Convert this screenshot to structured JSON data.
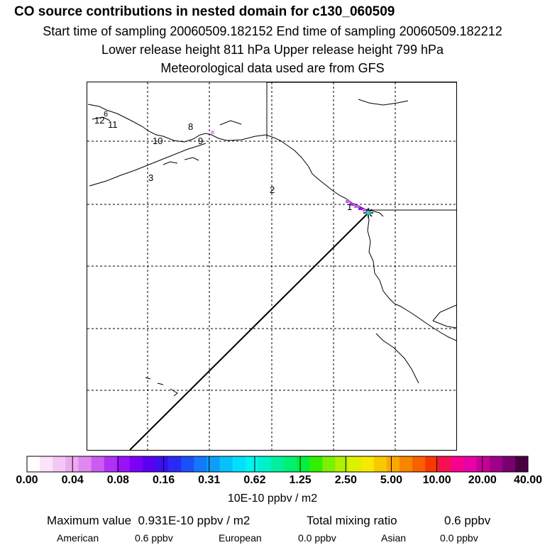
{
  "header": {
    "title": "CO  source contributions in nested domain for c130_060509",
    "line1": "Start time of sampling 20060509.182152     End time of sampling 20060509.182212",
    "line2": "Lower release height  811 hPa        Upper release height  799 hPa",
    "line3": "Meteorological data used are from GFS"
  },
  "chart_data": {
    "type": "heatmap",
    "title": "CO  source contributions in nested domain for c130_060509",
    "color_scale_labels": [
      "0.00",
      "0.04",
      "0.08",
      "0.16",
      "0.31",
      "0.62",
      "1.25",
      "2.50",
      "5.00",
      "10.00",
      "20.00",
      "40.00"
    ],
    "color_scale_units": "10E-10 ppbv / m2",
    "colors": [
      "#ffffff",
      "#fbe3fb",
      "#f5c6f5",
      "#eeaaf0",
      "#e088f0",
      "#cc5cf0",
      "#b030f5",
      "#9a10f8",
      "#7c00f8",
      "#5a00f0",
      "#3a10f0",
      "#2a2af8",
      "#1c50f8",
      "#1478fa",
      "#0c9efa",
      "#08c0fa",
      "#00e0fa",
      "#00f4f0",
      "#00f0c8",
      "#00f0a0",
      "#00f070",
      "#00f040",
      "#30f000",
      "#7cf000",
      "#b0f000",
      "#dcf000",
      "#f8e800",
      "#f8c800",
      "#f8a800",
      "#f88400",
      "#f86000",
      "#f83800",
      "#f81050",
      "#f80090",
      "#e800a8",
      "#c80098",
      "#a00088",
      "#780070",
      "#4a0040"
    ],
    "trajectory_labels": [
      "12",
      "11",
      "10",
      "9",
      "8",
      "3",
      "2",
      "1"
    ],
    "grid": true,
    "extra_strings": [
      "6"
    ]
  },
  "summary": {
    "max_label": "Maximum value",
    "max_value": "0.931E-10 ppbv / m2",
    "total_label": "Total mixing ratio",
    "total_value": "0.6 ppbv",
    "regions": [
      {
        "name": "American",
        "value": "0.6 ppbv"
      },
      {
        "name": "European",
        "value": "0.0 ppbv"
      },
      {
        "name": "Asian",
        "value": "0.0 ppbv"
      }
    ]
  }
}
